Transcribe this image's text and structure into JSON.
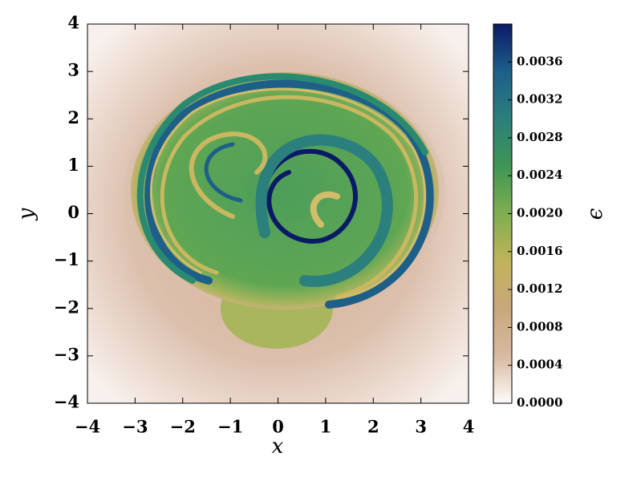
{
  "chart_data": {
    "type": "heatmap",
    "xlabel": "x",
    "ylabel": "y",
    "xlim": [
      -4,
      4
    ],
    "ylim": [
      -4,
      4
    ],
    "xticks": [
      {
        "value": -4,
        "label": "−4"
      },
      {
        "value": -3,
        "label": "−3"
      },
      {
        "value": -2,
        "label": "−2"
      },
      {
        "value": -1,
        "label": "−1"
      },
      0,
      1,
      2,
      3,
      4
    ],
    "yticks": [
      {
        "value": -4,
        "label": "−4"
      },
      {
        "value": -3,
        "label": "−3"
      },
      {
        "value": -2,
        "label": "−2"
      },
      {
        "value": -1,
        "label": "−1"
      },
      0,
      1,
      2,
      3,
      4
    ],
    "colorbar": {
      "label": "ϵ",
      "clim": [
        0,
        0.004
      ],
      "ticks": [
        {
          "value": 0,
          "label": "0.0000"
        },
        {
          "value": 0.0004,
          "label": "0.0004"
        },
        {
          "value": 0.0008,
          "label": "0.0008"
        },
        {
          "value": 0.0012,
          "label": "0.0012"
        },
        {
          "value": 0.0016,
          "label": "0.0016"
        },
        {
          "value": 0.002,
          "label": "0.0020"
        },
        {
          "value": 0.0024,
          "label": "0.0024"
        },
        {
          "value": 0.0028,
          "label": "0.0028"
        },
        {
          "value": 0.0032,
          "label": "0.0032"
        },
        {
          "value": 0.0036,
          "label": "0.0036"
        }
      ],
      "colors": [
        "#fdfbfa",
        "#d9b9a0",
        "#c9a77c",
        "#c2b35a",
        "#7fae4f",
        "#3f9654",
        "#2b7f7c",
        "#1e5f8a",
        "#0b1a66"
      ]
    }
  }
}
